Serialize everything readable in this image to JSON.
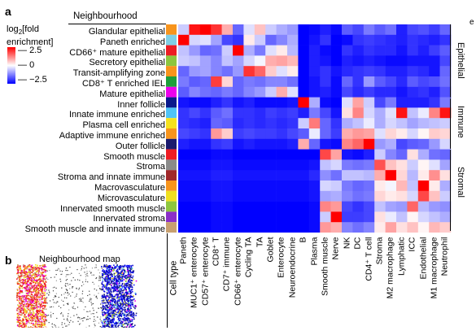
{
  "panel_a_letter": "a",
  "panel_b_letter": "b",
  "edge_letter": "e",
  "neighbourhood_header": "Neighbourhood",
  "legend": {
    "title_line1": "log",
    "title_sub": "2",
    "title_line1_rest": "[fold",
    "title_line2": "enrichment]",
    "ticks": [
      "2.5",
      "0",
      "−2.5"
    ],
    "colors": {
      "high": "#ff0000",
      "mid": "#ffffff",
      "low": "#0000ff"
    }
  },
  "celltype_axis_label": "Cell type",
  "map_title": "Neighbourhood map",
  "groups": [
    "Epithelial",
    "Immune",
    "Stromal"
  ],
  "chart_data": {
    "type": "heatmap",
    "rows": [
      "Glandular epithelial",
      "Paneth enriched",
      "CD66⁺ mature epithelial",
      "Secretory epithelial",
      "Transit-amplifying zone",
      "CD8⁺ T enriched IEL",
      "Mature epithelial",
      "Inner follicle",
      "Innate immune enriched",
      "Plasma cell enriched",
      "Adaptive immune enriched",
      "Outer follicle",
      "Smooth muscle",
      "Stroma",
      "Stroma and innate immune",
      "Macrovasculature",
      "Microvasculature",
      "Innervated smooth muscle",
      "Innervated stroma",
      "Smooth muscle and innate immune"
    ],
    "row_colors": [
      "#f7941d",
      "#7fcfe6",
      "#ed1c24",
      "#8dc63f",
      "#f7941d",
      "#1e9e3a",
      "#ec00ec",
      "#0a1a8c",
      "#4fc3f7",
      "#f5e11e",
      "#f7941d",
      "#1a1a6e",
      "#ee1c24",
      "#8a8a8a",
      "#a0282a",
      "#f7941d",
      "#f0e020",
      "#8dc63f",
      "#8b2fc9",
      "#c8a070"
    ],
    "columns": [
      "Paneth",
      "MUC1⁺ enterocyte",
      "CD57⁺ enterocyte",
      "CD8⁺ T",
      "CD7⁺ immune",
      "CD66⁺ enterocyte",
      "Cycling TA",
      "TA",
      "Goblet",
      "Enterocyte",
      "Neuroendocrine",
      "B",
      "Plasma",
      "Smooth muscle",
      "Nerve",
      "NK",
      "DC",
      "CD4⁺ T cell",
      "Stroma",
      "M2 macrophage",
      "Lymphatic",
      "ICC",
      "Endothelial",
      "M1 macrophage",
      "Neutrophil"
    ],
    "values": [
      [
        -0.5,
        2.3,
        2.5,
        2.0,
        0.8,
        -1.5,
        -0.3,
        0.6,
        -0.5,
        -0.8,
        -1.0,
        -2.5,
        -2.4,
        -2.2,
        -2.4,
        -1.6,
        -1.8,
        -1.3,
        -1.6,
        -1.4,
        -2.2,
        -1.8,
        -1.7,
        -1.9,
        -1.5
      ],
      [
        2.5,
        -0.4,
        -0.3,
        -0.9,
        -1.8,
        -2.0,
        0.2,
        -0.5,
        -1.5,
        -1.2,
        -0.8,
        -2.5,
        -2.3,
        -2.0,
        -2.5,
        -2.4,
        -2.0,
        -1.9,
        -2.0,
        -2.1,
        -2.2,
        -2.0,
        -2.1,
        -2.2,
        -2.0
      ],
      [
        -0.6,
        -1.0,
        -1.5,
        -1.4,
        -0.5,
        2.5,
        -0.8,
        -1.3,
        -0.3,
        0.2,
        -0.7,
        -2.5,
        -2.2,
        -2.4,
        -2.5,
        -2.0,
        -2.2,
        -2.0,
        -2.1,
        -2.1,
        -2.3,
        -2.0,
        -2.2,
        -1.9,
        -1.6
      ],
      [
        -0.5,
        -0.6,
        -0.9,
        -1.2,
        -0.6,
        -0.9,
        -0.4,
        -0.1,
        0.8,
        0.9,
        0.7,
        -2.5,
        -2.2,
        -2.3,
        -2.5,
        -2.2,
        -2.3,
        -2.2,
        -2.3,
        -2.4,
        -2.4,
        -2.3,
        -2.3,
        -2.3,
        -1.8
      ],
      [
        -1.5,
        -1.0,
        -0.9,
        -1.2,
        -1.4,
        -1.0,
        2.0,
        1.5,
        0.5,
        -0.3,
        0.2,
        -2.5,
        -2.2,
        -2.0,
        -2.3,
        -2.1,
        -2.0,
        -1.9,
        -2.0,
        -2.2,
        -2.2,
        -2.0,
        -2.1,
        -2.3,
        -1.5
      ],
      [
        -1.3,
        -1.6,
        -1.5,
        1.9,
        0.4,
        -1.5,
        -1.3,
        -1.4,
        -1.2,
        -1.2,
        -1.4,
        -2.5,
        -2.3,
        -2.0,
        -2.4,
        -1.5,
        -2.0,
        -1.0,
        -1.6,
        -1.8,
        -2.1,
        -1.6,
        -1.8,
        -1.7,
        -1.4
      ],
      [
        -1.6,
        -1.2,
        -1.4,
        -1.5,
        -1.3,
        -1.5,
        -1.2,
        -1.0,
        -0.5,
        0.8,
        -0.3,
        -2.5,
        -2.3,
        -2.2,
        -2.4,
        -1.8,
        -2.1,
        -1.9,
        -2.1,
        -2.1,
        -2.3,
        -2.1,
        -2.0,
        -2.2,
        -1.7
      ],
      [
        -2.3,
        -2.4,
        -2.4,
        -2.2,
        -2.0,
        -2.3,
        -2.2,
        -2.4,
        -2.4,
        -2.4,
        -2.3,
        2.5,
        -0.8,
        -2.4,
        -2.5,
        -0.3,
        0.9,
        -0.5,
        -1.8,
        -1.3,
        -2.2,
        -2.2,
        -2.2,
        -2.0,
        -1.3
      ],
      [
        -2.0,
        -1.8,
        -2.0,
        -1.6,
        -1.4,
        -2.0,
        -2.0,
        -2.1,
        -1.9,
        -2.0,
        -1.9,
        -2.2,
        -1.3,
        -1.8,
        -2.3,
        0.3,
        1.2,
        -0.4,
        -0.8,
        -0.3,
        2.3,
        -0.6,
        -0.2,
        1.2,
        2.3
      ],
      [
        -2.0,
        -2.1,
        -2.2,
        -1.5,
        -1.6,
        -2.1,
        -2.0,
        -2.1,
        -2.0,
        -2.1,
        -2.0,
        -0.5,
        1.3,
        -1.5,
        -2.0,
        -0.8,
        -0.6,
        -0.2,
        -0.8,
        -0.4,
        -0.6,
        -0.9,
        -0.7,
        -0.6,
        -0.5
      ],
      [
        -1.8,
        -1.9,
        -2.0,
        1.0,
        0.5,
        -1.9,
        -1.8,
        -1.9,
        -1.9,
        -2.0,
        -1.8,
        -1.6,
        -0.2,
        -1.5,
        -1.9,
        0.8,
        1.0,
        0.9,
        -0.3,
        0.4,
        0.2,
        -0.4,
        0.1,
        0.5,
        0.4
      ],
      [
        -2.2,
        -2.3,
        -2.3,
        -2.0,
        -1.9,
        -2.3,
        -2.2,
        -2.3,
        -2.3,
        -2.3,
        -2.2,
        0.8,
        -1.5,
        -2.3,
        -2.4,
        1.2,
        1.5,
        2.5,
        -1.0,
        -0.8,
        -1.8,
        -1.6,
        -1.5,
        -1.0,
        -0.4
      ],
      [
        -2.5,
        -2.5,
        -2.5,
        -2.4,
        -2.4,
        -2.5,
        -2.5,
        -2.5,
        -2.5,
        -2.5,
        -2.5,
        -2.5,
        -2.5,
        1.8,
        0.9,
        -2.3,
        -2.4,
        -2.2,
        -0.5,
        -1.2,
        -1.5,
        0.3,
        -0.8,
        -1.4,
        -1.5
      ],
      [
        -2.4,
        -2.4,
        -2.4,
        -2.3,
        -2.3,
        -2.4,
        -2.4,
        -2.4,
        -2.4,
        -2.4,
        -2.4,
        -2.4,
        -2.3,
        -0.6,
        -0.4,
        -1.3,
        -1.4,
        -1.3,
        1.7,
        0.6,
        0.3,
        -0.5,
        0.1,
        -0.3,
        -0.9
      ],
      [
        -2.3,
        -2.3,
        -2.3,
        -2.2,
        -2.2,
        -2.3,
        -2.3,
        -2.3,
        -2.3,
        -2.3,
        -2.3,
        -2.3,
        -2.1,
        -1.1,
        -1.4,
        -0.6,
        -0.6,
        -0.7,
        0.8,
        2.5,
        0.4,
        -0.7,
        0.2,
        1.1,
        0.3
      ],
      [
        -2.4,
        -2.4,
        -2.4,
        -2.3,
        -2.3,
        -2.4,
        -2.4,
        -2.4,
        -2.4,
        -2.4,
        -2.4,
        -2.4,
        -2.3,
        -0.4,
        -0.5,
        -1.3,
        -1.5,
        -1.4,
        0.2,
        -0.1,
        0.7,
        -0.6,
        2.5,
        0.2,
        -0.8
      ],
      [
        -2.4,
        -2.4,
        -2.4,
        -2.3,
        -2.3,
        -2.4,
        -2.4,
        -2.4,
        -2.4,
        -2.4,
        -2.4,
        -2.4,
        -2.3,
        -0.9,
        -0.8,
        -1.2,
        -1.4,
        -1.3,
        0.4,
        0.2,
        0.3,
        -0.4,
        1.8,
        0.6,
        -0.5
      ],
      [
        -2.5,
        -2.5,
        -2.5,
        -2.4,
        -2.4,
        -2.5,
        -2.5,
        -2.5,
        -2.5,
        -2.5,
        -2.5,
        -2.5,
        -2.4,
        1.2,
        1.0,
        -1.8,
        -2.0,
        -1.8,
        -0.6,
        -0.9,
        -1.0,
        1.5,
        -0.7,
        -1.0,
        -1.1
      ],
      [
        -2.5,
        -2.5,
        -2.5,
        -2.4,
        -2.4,
        -2.5,
        -2.5,
        -2.5,
        -2.5,
        -2.5,
        -2.5,
        -2.5,
        -2.4,
        -0.5,
        2.5,
        -1.9,
        -1.9,
        -1.8,
        0.3,
        -0.2,
        -0.6,
        0.1,
        -0.4,
        -0.6,
        -0.8
      ],
      [
        -2.5,
        -2.5,
        -2.5,
        -2.4,
        -2.4,
        -2.5,
        -2.5,
        -2.5,
        -2.5,
        -2.5,
        -2.5,
        -2.5,
        -2.4,
        1.0,
        0.8,
        -1.2,
        -1.4,
        -1.2,
        0.2,
        0.9,
        0.3,
        0.6,
        0.1,
        0.7,
        0.5
      ]
    ],
    "vmin": -2.5,
    "vmax": 2.5,
    "group_row_ranges": [
      [
        0,
        6
      ],
      [
        7,
        11
      ],
      [
        12,
        19
      ]
    ]
  }
}
